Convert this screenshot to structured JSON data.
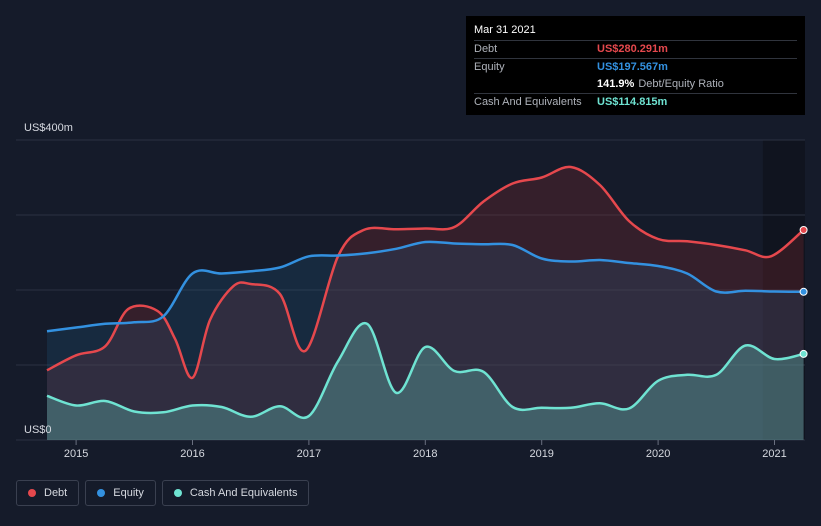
{
  "colors": {
    "debt": "#e5484d",
    "equity": "#3391e0",
    "cash": "#6fe3d2",
    "grid": "#2c3242"
  },
  "tooltip": {
    "date": "Mar 31 2021",
    "rows": [
      {
        "name": "Debt",
        "value": "US$280.291m"
      },
      {
        "name": "Equity",
        "value": "US$197.567m"
      },
      {
        "name": "Cash And Equivalents",
        "value": "US$114.815m"
      }
    ],
    "ratio_value": "141.9%",
    "ratio_label": "Debt/Equity Ratio"
  },
  "legend": [
    {
      "key": "debt",
      "label": "Debt"
    },
    {
      "key": "equity",
      "label": "Equity"
    },
    {
      "key": "cash",
      "label": "Cash And Equivalents"
    }
  ],
  "chart_data": {
    "type": "area",
    "ylim": [
      0,
      400
    ],
    "y_tick_labels": [
      {
        "value": 400,
        "label": "US$400m"
      },
      {
        "value": 0,
        "label": "US$0"
      }
    ],
    "xlim": [
      2014.5,
      2021.25
    ],
    "x_ticks": [
      "2015",
      "2016",
      "2017",
      "2018",
      "2019",
      "2020",
      "2021"
    ],
    "grid": true,
    "legend_position": "bottom-left",
    "series": [
      {
        "name": "Debt",
        "key": "debt",
        "x": [
          2014.75,
          2015.0,
          2015.25,
          2015.45,
          2015.7,
          2015.85,
          2016.0,
          2016.15,
          2016.35,
          2016.5,
          2016.75,
          2016.97,
          2017.25,
          2017.47,
          2017.75,
          2018.0,
          2018.25,
          2018.5,
          2018.75,
          2019.0,
          2019.25,
          2019.5,
          2019.75,
          2020.0,
          2020.25,
          2020.5,
          2020.75,
          2020.97,
          2021.25
        ],
        "y": [
          93,
          113,
          125,
          175,
          172,
          135,
          83,
          160,
          205,
          208,
          195,
          119,
          245,
          280,
          281,
          282,
          284,
          318,
          342,
          350,
          364,
          340,
          292,
          268,
          265,
          260,
          253,
          245,
          280
        ]
      },
      {
        "name": "Equity",
        "key": "equity",
        "x": [
          2014.75,
          2015.0,
          2015.25,
          2015.5,
          2015.75,
          2016.0,
          2016.25,
          2016.5,
          2016.75,
          2017.0,
          2017.25,
          2017.5,
          2017.75,
          2018.0,
          2018.25,
          2018.5,
          2018.75,
          2019.0,
          2019.25,
          2019.5,
          2019.75,
          2020.0,
          2020.25,
          2020.5,
          2020.75,
          2021.0,
          2021.25
        ],
        "y": [
          145,
          150,
          155,
          157,
          165,
          222,
          222,
          225,
          230,
          245,
          246,
          249,
          255,
          264,
          262,
          261,
          260,
          242,
          238,
          240,
          236,
          232,
          222,
          198,
          199,
          198,
          197.6
        ]
      },
      {
        "name": "Cash And Equivalents",
        "key": "cash",
        "x": [
          2014.75,
          2015.0,
          2015.25,
          2015.5,
          2015.75,
          2016.0,
          2016.25,
          2016.5,
          2016.75,
          2017.0,
          2017.25,
          2017.5,
          2017.75,
          2018.0,
          2018.25,
          2018.5,
          2018.75,
          2019.0,
          2019.25,
          2019.5,
          2019.75,
          2020.0,
          2020.25,
          2020.5,
          2020.75,
          2021.0,
          2021.25
        ],
        "y": [
          59,
          46,
          52,
          38,
          37,
          46,
          44,
          31,
          45,
          32,
          105,
          155,
          63,
          124,
          92,
          91,
          44,
          43,
          43,
          49,
          42,
          79,
          87,
          87,
          126,
          108,
          114.8
        ]
      }
    ]
  }
}
